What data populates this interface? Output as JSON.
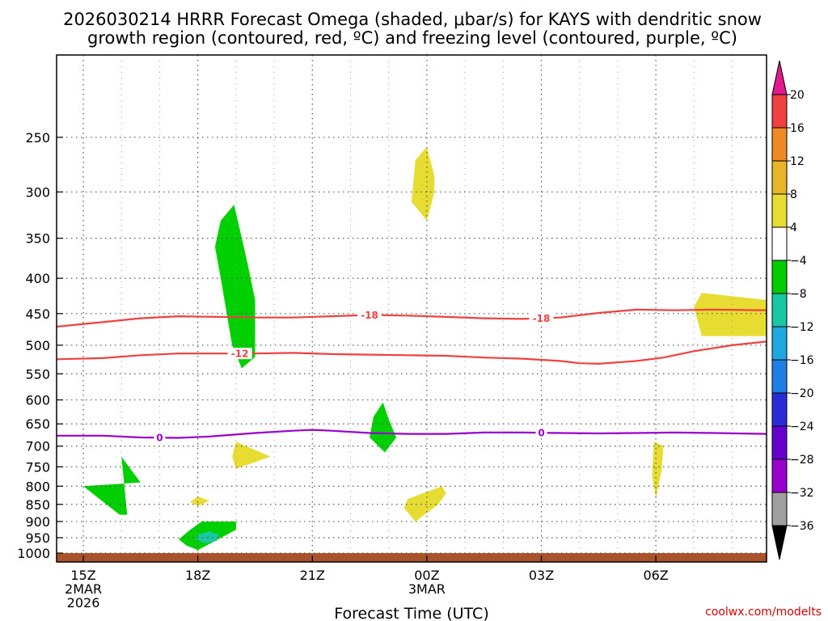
{
  "chart_data": {
    "type": "heatmap",
    "title_line1": "2026030214 HRRR Forecast Omega (shaded, μbar/s) for KAYS with dendritic snow",
    "title_line2": "growth region (contoured, red, ºC) and freezing level (contoured, purple, ºC)",
    "xlabel": "Forecast Time (UTC)",
    "credit": "coolwx.com/modelts",
    "x_range_hours": [
      14.3,
      32.9
    ],
    "x_ticks": [
      {
        "hour": 15,
        "label": "15Z",
        "sub1": "2MAR",
        "sub2": "2026"
      },
      {
        "hour": 18,
        "label": "18Z"
      },
      {
        "hour": 21,
        "label": "21Z"
      },
      {
        "hour": 24,
        "label": "00Z",
        "sub1": "3MAR"
      },
      {
        "hour": 27,
        "label": "03Z"
      },
      {
        "hour": 30,
        "label": "06Z"
      }
    ],
    "y_axis": "pressure_hPa_log",
    "y_range": [
      190,
      1030
    ],
    "y_ticks": [
      250,
      300,
      350,
      400,
      450,
      500,
      550,
      600,
      650,
      700,
      750,
      800,
      850,
      900,
      950,
      1000
    ],
    "colorbar": {
      "levels": [
        -36,
        -32,
        -28,
        -24,
        -20,
        -16,
        -12,
        -8,
        -4,
        4,
        8,
        12,
        16,
        20
      ],
      "colors": [
        "#000000",
        "#a0a0a0",
        "#9a00cc",
        "#6600cc",
        "#2b2bd8",
        "#1e7fe6",
        "#1ea8e0",
        "#19c7a3",
        "#00cc00",
        "#ffffff",
        "#e6dc32",
        "#e8b42a",
        "#ef8a25",
        "#f04040",
        "#e01a8c"
      ]
    },
    "omega_regions": [
      {
        "name": "region-green-upper",
        "value": -6,
        "color": "#00d000",
        "points": [
          [
            18.95,
            313
          ],
          [
            19.1,
            340
          ],
          [
            19.3,
            380
          ],
          [
            19.5,
            430
          ],
          [
            19.5,
            520
          ],
          [
            19.15,
            540
          ],
          [
            18.9,
            500
          ],
          [
            18.6,
            400
          ],
          [
            18.45,
            360
          ],
          [
            18.6,
            330
          ]
        ]
      },
      {
        "name": "region-green-lowleft",
        "value": -6,
        "color": "#00d000",
        "points": [
          [
            16.0,
            725
          ],
          [
            16.5,
            790
          ],
          [
            15.0,
            800
          ],
          [
            15.95,
            880
          ],
          [
            16.15,
            880
          ]
        ]
      },
      {
        "name": "region-green-bottom",
        "value": -6,
        "color": "#00d000",
        "points": [
          [
            18.1,
            900
          ],
          [
            19.0,
            900
          ],
          [
            19.0,
            925
          ],
          [
            18.0,
            990
          ],
          [
            17.7,
            975
          ],
          [
            17.5,
            955
          ],
          [
            17.8,
            925
          ]
        ]
      },
      {
        "name": "region-teal-bottom",
        "value": -10,
        "color": "#19c7a3",
        "points": [
          [
            18.3,
            930
          ],
          [
            18.55,
            940
          ],
          [
            18.5,
            960
          ],
          [
            18.2,
            968
          ],
          [
            17.95,
            955
          ],
          [
            18.0,
            940
          ]
        ]
      },
      {
        "name": "region-green-mid",
        "value": -6,
        "color": "#00d000",
        "points": [
          [
            22.85,
            605
          ],
          [
            23.0,
            640
          ],
          [
            23.2,
            680
          ],
          [
            22.9,
            715
          ],
          [
            22.5,
            680
          ],
          [
            22.6,
            635
          ]
        ]
      },
      {
        "name": "region-yellow-upper",
        "value": 6,
        "color": "#e6dc32",
        "points": [
          [
            24.0,
            258
          ],
          [
            24.2,
            285
          ],
          [
            24.2,
            300
          ],
          [
            24.1,
            315
          ],
          [
            24.0,
            330
          ],
          [
            23.6,
            310
          ],
          [
            23.7,
            270
          ]
        ]
      },
      {
        "name": "region-yellow-small",
        "value": 6,
        "color": "#e6dc32",
        "points": [
          [
            19.0,
            690
          ],
          [
            19.9,
            725
          ],
          [
            19.0,
            755
          ],
          [
            18.9,
            725
          ]
        ]
      },
      {
        "name": "region-yellow-dot",
        "value": 6,
        "color": "#e6dc32",
        "points": [
          [
            18.0,
            828
          ],
          [
            18.3,
            840
          ],
          [
            18.0,
            855
          ],
          [
            17.8,
            843
          ]
        ]
      },
      {
        "name": "region-yellow-lowmid",
        "value": 6,
        "color": "#e6dc32",
        "points": [
          [
            24.4,
            800
          ],
          [
            24.5,
            820
          ],
          [
            24.3,
            850
          ],
          [
            23.7,
            900
          ],
          [
            23.4,
            860
          ],
          [
            23.5,
            835
          ]
        ]
      },
      {
        "name": "region-yellow-right",
        "value": 6,
        "color": "#e6dc32",
        "points": [
          [
            29.95,
            690
          ],
          [
            30.2,
            700
          ],
          [
            30.15,
            760
          ],
          [
            30.0,
            835
          ],
          [
            29.9,
            770
          ]
        ]
      },
      {
        "name": "region-yellow-topright",
        "value": 6,
        "color": "#e6dc32",
        "points": [
          [
            31.2,
            420
          ],
          [
            32.9,
            430
          ],
          [
            32.9,
            485
          ],
          [
            31.2,
            485
          ],
          [
            31.0,
            440
          ]
        ]
      }
    ],
    "contours": [
      {
        "name": "contour-minus18",
        "label": "-18",
        "color": "#f04040",
        "points": [
          [
            14.3,
            470
          ],
          [
            15.5,
            463
          ],
          [
            16.5,
            457
          ],
          [
            17.5,
            454
          ],
          [
            18.5,
            455
          ],
          [
            19.5,
            456
          ],
          [
            20.5,
            456
          ],
          [
            21.5,
            454
          ],
          [
            22.5,
            452
          ],
          [
            23.5,
            453
          ],
          [
            24.5,
            455
          ],
          [
            25.5,
            457
          ],
          [
            26.5,
            458
          ],
          [
            27.5,
            456
          ],
          [
            28.5,
            449
          ],
          [
            29.5,
            444
          ],
          [
            30.5,
            445
          ],
          [
            31.5,
            444
          ],
          [
            32.9,
            445
          ]
        ],
        "label_positions": [
          22.5,
          27.0
        ]
      },
      {
        "name": "contour-minus12",
        "label": "-12",
        "color": "#f04040",
        "points": [
          [
            14.3,
            524
          ],
          [
            15.5,
            522
          ],
          [
            16.5,
            517
          ],
          [
            17.5,
            514
          ],
          [
            18.5,
            514
          ],
          [
            19.5,
            514
          ],
          [
            20.5,
            513
          ],
          [
            21.5,
            515
          ],
          [
            22.5,
            516
          ],
          [
            23.5,
            517
          ],
          [
            24.5,
            518
          ],
          [
            25.5,
            521
          ],
          [
            26.5,
            523
          ],
          [
            27.5,
            527
          ],
          [
            28.0,
            531
          ],
          [
            28.5,
            532
          ],
          [
            29.5,
            527
          ],
          [
            30.2,
            521
          ],
          [
            31.0,
            510
          ],
          [
            32.0,
            500
          ],
          [
            32.9,
            494
          ]
        ],
        "label_positions": [
          19.1
        ]
      },
      {
        "name": "contour-0",
        "label": "0",
        "color": "#9a00cc",
        "points": [
          [
            14.3,
            676
          ],
          [
            15.5,
            676
          ],
          [
            16.5,
            680
          ],
          [
            17.5,
            681
          ],
          [
            18.3,
            678
          ],
          [
            19.5,
            670
          ],
          [
            20.5,
            665
          ],
          [
            21.0,
            663
          ],
          [
            21.5,
            665
          ],
          [
            22.5,
            670
          ],
          [
            23.5,
            672
          ],
          [
            24.5,
            672
          ],
          [
            25.5,
            669
          ],
          [
            26.5,
            669
          ],
          [
            27.5,
            670
          ],
          [
            28.5,
            671
          ],
          [
            29.5,
            670
          ],
          [
            30.5,
            669
          ],
          [
            31.5,
            670
          ],
          [
            32.9,
            672
          ]
        ],
        "label_positions": [
          17.0,
          27.0
        ]
      }
    ]
  }
}
